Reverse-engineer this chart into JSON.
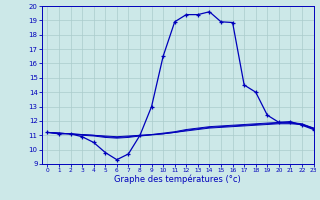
{
  "xlabel": "Graphe des températures (°c)",
  "bg_color": "#cce8e8",
  "line_color": "#0000bb",
  "grid_color": "#aacccc",
  "hours": [
    0,
    1,
    2,
    3,
    4,
    5,
    6,
    7,
    8,
    9,
    10,
    11,
    12,
    13,
    14,
    15,
    16,
    17,
    18,
    19,
    20,
    21,
    22,
    23
  ],
  "temp_main": [
    11.2,
    11.1,
    11.1,
    10.9,
    10.5,
    9.8,
    9.3,
    9.7,
    11.0,
    13.0,
    16.5,
    18.9,
    19.4,
    19.4,
    19.6,
    18.9,
    18.85,
    14.5,
    14.0,
    12.4,
    11.9,
    11.95,
    11.7,
    11.4
  ],
  "temp_line1": [
    11.2,
    11.15,
    11.1,
    11.05,
    11.0,
    10.95,
    10.9,
    10.95,
    11.0,
    11.05,
    11.1,
    11.2,
    11.3,
    11.4,
    11.5,
    11.55,
    11.6,
    11.65,
    11.7,
    11.75,
    11.8,
    11.8,
    11.75,
    11.5
  ],
  "temp_line2": [
    11.2,
    11.15,
    11.1,
    11.05,
    11.0,
    10.9,
    10.85,
    10.9,
    10.98,
    11.05,
    11.15,
    11.25,
    11.4,
    11.5,
    11.6,
    11.65,
    11.7,
    11.75,
    11.8,
    11.85,
    11.9,
    11.9,
    11.8,
    11.5
  ],
  "temp_line3": [
    11.2,
    11.15,
    11.1,
    11.0,
    10.95,
    10.85,
    10.8,
    10.85,
    10.95,
    11.02,
    11.1,
    11.2,
    11.35,
    11.45,
    11.55,
    11.6,
    11.65,
    11.7,
    11.75,
    11.8,
    11.85,
    11.85,
    11.75,
    11.45
  ],
  "ylim": [
    9,
    20
  ],
  "xlim": [
    -0.5,
    23
  ],
  "yticks": [
    9,
    10,
    11,
    12,
    13,
    14,
    15,
    16,
    17,
    18,
    19,
    20
  ],
  "xticks": [
    0,
    1,
    2,
    3,
    4,
    5,
    6,
    7,
    8,
    9,
    10,
    11,
    12,
    13,
    14,
    15,
    16,
    17,
    18,
    19,
    20,
    21,
    22,
    23
  ]
}
